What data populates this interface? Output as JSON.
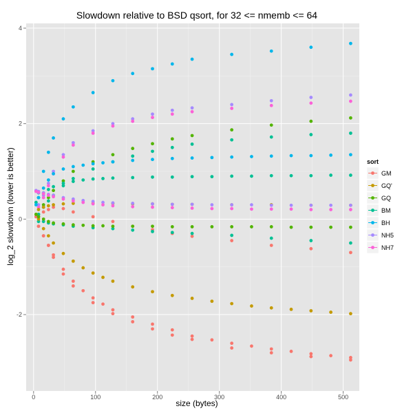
{
  "chart_data": {
    "type": "scatter",
    "title": "Slowdown relative to BSD qsort, for 32 <= nmemb <= 64",
    "xlabel": "size (bytes)",
    "ylabel": "log_2 slowdown (lower is better)",
    "xlim": [
      -12,
      526
    ],
    "ylim": [
      -3.6,
      4.1
    ],
    "x_ticks": [
      0,
      100,
      200,
      300,
      400,
      500
    ],
    "y_ticks": [
      -2,
      0,
      2,
      4
    ],
    "x_tick_labels": [
      "0",
      "100",
      "200",
      "300",
      "400",
      "500"
    ],
    "y_tick_labels": [
      "-2",
      "0",
      "2",
      "4"
    ],
    "grid": true,
    "legend_title": "sort",
    "legend_position": "right",
    "x": [
      4,
      8,
      16,
      24,
      32,
      48,
      64,
      80,
      96,
      112,
      128,
      160,
      192,
      224,
      256,
      288,
      320,
      352,
      384,
      416,
      448,
      480,
      512
    ],
    "series": [
      {
        "name": "GM",
        "color": "#F8766D",
        "values": [
          0.05,
          -0.15,
          -0.35,
          -0.55,
          -0.75,
          -1.05,
          -1.3,
          -1.5,
          -1.65,
          -1.78,
          -1.9,
          -2.05,
          -2.2,
          -2.32,
          -2.45,
          -2.53,
          -2.6,
          -2.66,
          -2.72,
          -2.77,
          -2.82,
          -2.86,
          -2.9
        ]
      },
      {
        "name": "GQ'",
        "color": "#C49A00",
        "values": [
          0.1,
          0.0,
          -0.2,
          -0.35,
          -0.5,
          -0.72,
          -0.88,
          -1.02,
          -1.13,
          -1.22,
          -1.3,
          -1.42,
          -1.52,
          -1.6,
          -1.66,
          -1.72,
          -1.77,
          -1.82,
          -1.86,
          -1.89,
          -1.92,
          -1.95,
          -1.98
        ]
      },
      {
        "name": "GQ",
        "color": "#53B400",
        "values": [
          0.1,
          0.05,
          0.0,
          -0.05,
          -0.08,
          -0.1,
          -0.12,
          -0.13,
          -0.14,
          -0.14,
          -0.15,
          -0.15,
          -0.15,
          -0.16,
          -0.16,
          -0.16,
          -0.16,
          -0.16,
          -0.16,
          -0.17,
          -0.17,
          -0.17,
          -0.17
        ]
      },
      {
        "name": "BM",
        "color": "#00C094",
        "values": [
          0.35,
          0.45,
          0.55,
          0.62,
          0.68,
          0.75,
          0.79,
          0.82,
          0.84,
          0.85,
          0.86,
          0.87,
          0.88,
          0.88,
          0.89,
          0.89,
          0.9,
          0.9,
          0.91,
          0.91,
          0.91,
          0.92,
          0.92
        ]
      },
      {
        "name": "BH",
        "color": "#00B6EB",
        "values": [
          0.3,
          0.45,
          0.65,
          0.82,
          0.95,
          1.05,
          1.1,
          1.13,
          1.16,
          1.18,
          1.2,
          1.23,
          1.25,
          1.27,
          1.28,
          1.29,
          1.3,
          1.31,
          1.32,
          1.33,
          1.33,
          1.34,
          1.35
        ]
      },
      {
        "name": "NH5",
        "color": "#A58AFF",
        "values": [
          0.6,
          0.58,
          0.55,
          0.52,
          0.5,
          0.45,
          0.42,
          0.39,
          0.37,
          0.35,
          0.34,
          0.33,
          0.32,
          0.31,
          0.31,
          0.3,
          0.3,
          0.3,
          0.29,
          0.29,
          0.29,
          0.29,
          0.29
        ]
      },
      {
        "name": "NH7",
        "color": "#FB61D7",
        "values": [
          0.58,
          0.56,
          0.53,
          0.5,
          0.47,
          0.42,
          0.38,
          0.35,
          0.32,
          0.3,
          0.28,
          0.26,
          0.25,
          0.24,
          0.23,
          0.22,
          0.22,
          0.21,
          0.21,
          0.21,
          0.2,
          0.2,
          0.2
        ]
      }
    ],
    "secondary_series": [
      {
        "name": "BH",
        "color": "#00B6EB",
        "x": [
          8,
          16,
          24,
          32,
          48,
          64,
          96,
          128,
          160,
          192,
          224,
          256,
          320,
          384,
          448,
          512
        ],
        "values": [
          0.55,
          1.0,
          1.4,
          1.7,
          2.1,
          2.35,
          2.65,
          2.9,
          3.05,
          3.15,
          3.25,
          3.35,
          3.45,
          3.52,
          3.6,
          3.68
        ]
      },
      {
        "name": "NH5",
        "color": "#A58AFF",
        "x": [
          8,
          16,
          24,
          32,
          48,
          64,
          96,
          128,
          160,
          192,
          224,
          256,
          320,
          384,
          448,
          512
        ],
        "values": [
          0.3,
          0.5,
          0.75,
          1.0,
          1.35,
          1.6,
          1.85,
          2.0,
          2.1,
          2.2,
          2.28,
          2.33,
          2.4,
          2.48,
          2.55,
          2.6
        ]
      },
      {
        "name": "NH7",
        "color": "#FB61D7",
        "x": [
          8,
          16,
          24,
          32,
          48,
          64,
          96,
          128,
          160,
          192,
          224,
          256,
          320,
          384,
          448,
          512
        ],
        "values": [
          0.25,
          0.45,
          0.7,
          0.95,
          1.3,
          1.55,
          1.8,
          1.95,
          2.05,
          2.13,
          2.2,
          2.25,
          2.32,
          2.38,
          2.43,
          2.47
        ]
      },
      {
        "name": "GQ",
        "color": "#53B400",
        "x": [
          8,
          16,
          24,
          32,
          48,
          64,
          96,
          128,
          160,
          192,
          224,
          256,
          320,
          384,
          448,
          512
        ],
        "values": [
          0.1,
          0.3,
          0.45,
          0.6,
          0.8,
          1.0,
          1.2,
          1.35,
          1.48,
          1.58,
          1.68,
          1.75,
          1.87,
          1.97,
          2.05,
          2.12
        ]
      },
      {
        "name": "BM",
        "color": "#00C094",
        "x": [
          8,
          16,
          24,
          32,
          48,
          64,
          96,
          128,
          160,
          192,
          224,
          256,
          320,
          384,
          448,
          512
        ],
        "values": [
          0.1,
          0.25,
          0.38,
          0.5,
          0.7,
          0.85,
          1.05,
          1.2,
          1.32,
          1.42,
          1.5,
          1.57,
          1.66,
          1.72,
          1.77,
          1.8
        ]
      },
      {
        "name": "GM",
        "color": "#F8766D",
        "x": [
          8,
          16,
          24,
          32,
          48,
          64,
          96,
          128,
          160,
          192,
          224,
          256,
          320,
          384,
          448,
          512
        ],
        "values": [
          0.05,
          0.15,
          0.2,
          0.25,
          0.22,
          0.15,
          0.05,
          -0.05,
          -0.15,
          -0.22,
          -0.3,
          -0.36,
          -0.45,
          -0.55,
          -0.62,
          -0.7
        ]
      },
      {
        "name": "BM",
        "color": "#00C094",
        "x": [
          8,
          16,
          24,
          32,
          48,
          64,
          96,
          128,
          160,
          192,
          224,
          256,
          320,
          384,
          448,
          512
        ],
        "values": [
          -0.05,
          -0.05,
          -0.08,
          -0.1,
          -0.12,
          -0.15,
          -0.18,
          -0.2,
          -0.23,
          -0.26,
          -0.28,
          -0.3,
          -0.34,
          -0.4,
          -0.45,
          -0.5
        ]
      },
      {
        "name": "GQ'",
        "color": "#C49A00",
        "x": [
          8,
          16,
          24,
          32,
          48,
          64,
          96,
          128,
          160,
          192,
          224,
          256,
          320,
          384,
          448,
          512
        ],
        "values": [
          0.2,
          0.25,
          0.28,
          0.3,
          0.32,
          0.33,
          0.33,
          0.33,
          0.32,
          0.32,
          0.31,
          0.31,
          0.3,
          0.3,
          0.29,
          0.29
        ]
      },
      {
        "name": "GM",
        "color": "#F8766D",
        "x": [
          8,
          16,
          24,
          32,
          48,
          64,
          96,
          128,
          160,
          192,
          224,
          256,
          320,
          384,
          448,
          512
        ],
        "values": [
          -0.15,
          -0.35,
          -0.55,
          -0.8,
          -1.15,
          -1.4,
          -1.75,
          -1.98,
          -2.15,
          -2.3,
          -2.43,
          -2.52,
          -2.7,
          -2.8,
          -2.88,
          -2.95
        ]
      }
    ]
  }
}
